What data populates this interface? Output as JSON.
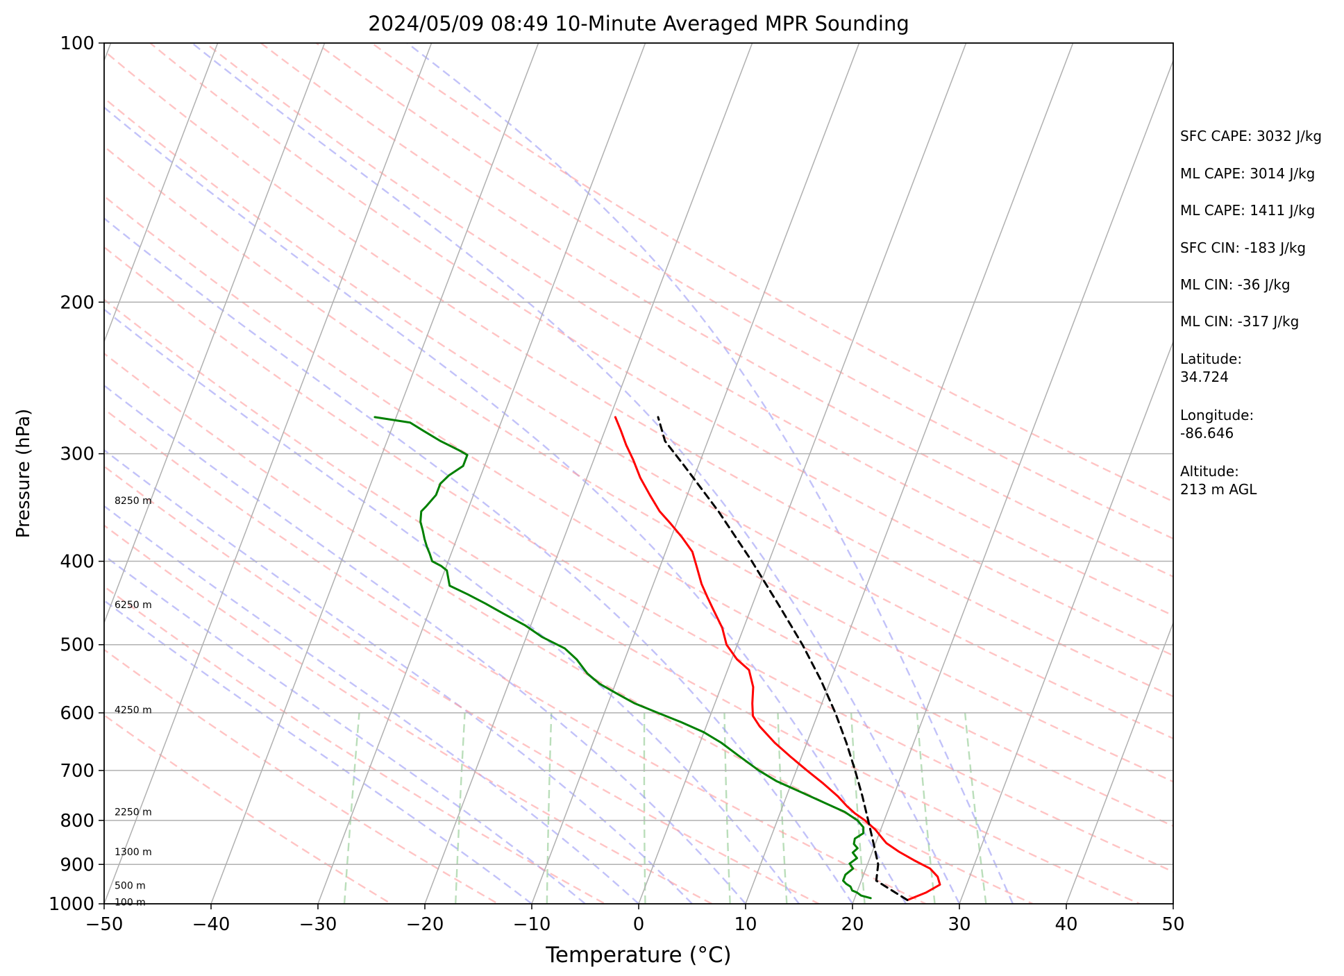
{
  "chart_data": {
    "type": "line",
    "title": "2024/05/09 08:49 10-Minute Averaged MPR Sounding",
    "xlabel": "Temperature (°C)",
    "ylabel": "Pressure (hPa)",
    "xlim": [
      -50,
      50
    ],
    "ylim": [
      1000,
      100
    ],
    "y_scale": "log",
    "skew_t": true,
    "grid": true,
    "x_ticks": [
      -50,
      -40,
      -30,
      -20,
      -10,
      0,
      10,
      20,
      30,
      40,
      50
    ],
    "x_tick_labels": [
      "−50",
      "−40",
      "−30",
      "−20",
      "−10",
      "0",
      "10",
      "20",
      "30",
      "40",
      "50"
    ],
    "y_ticks": [
      100,
      200,
      300,
      400,
      500,
      600,
      700,
      800,
      900,
      1000
    ],
    "y_tick_labels": [
      "100",
      "200",
      "300",
      "400",
      "500",
      "600",
      "700",
      "800",
      "900",
      "1000"
    ],
    "isotherms_C": [
      -110,
      -100,
      -90,
      -80,
      -70,
      -60,
      -50,
      -40,
      -30,
      -20,
      -10,
      0,
      10,
      20,
      30,
      40,
      50
    ],
    "dry_adiabats_K": [
      250,
      260,
      270,
      280,
      290,
      300,
      310,
      320,
      330,
      340,
      350,
      360,
      370,
      380,
      390,
      400,
      410,
      420
    ],
    "moist_adiabats_C": [
      -10,
      -5,
      0,
      5,
      10,
      15,
      20,
      25,
      30,
      35
    ],
    "mixing_ratio_lines_gkg": [
      0.4,
      1,
      2,
      4,
      7,
      10,
      16,
      24,
      32
    ],
    "height_labels": [
      {
        "text": "8250 m",
        "p": 340
      },
      {
        "text": "6250 m",
        "p": 449
      },
      {
        "text": "4250 m",
        "p": 595
      },
      {
        "text": "2250 m",
        "p": 782
      },
      {
        "text": "1300 m",
        "p": 870
      },
      {
        "text": "500 m",
        "p": 952
      },
      {
        "text": "100 m",
        "p": 995
      }
    ],
    "side_annotations": [
      "SFC CAPE: 3032 J/kg",
      "ML CAPE: 3014 J/kg",
      "ML CAPE: 1411 J/kg",
      "SFC CIN: -183 J/kg",
      "ML CIN: -36 J/kg",
      "ML CIN: -317 J/kg",
      "Latitude:",
      "34.724",
      "Longitude:",
      "-86.646",
      "Altitude:",
      "213 m AGL"
    ],
    "series": [
      {
        "color": "#ff0000",
        "points": [
          [
            25.0,
            990
          ],
          [
            26.5,
            970
          ],
          [
            27.5,
            950
          ],
          [
            27.0,
            930
          ],
          [
            26.0,
            910
          ],
          [
            24.2,
            890
          ],
          [
            22.5,
            870
          ],
          [
            21.0,
            850
          ],
          [
            20.5,
            840
          ],
          [
            19.5,
            820
          ],
          [
            18.2,
            800
          ],
          [
            17.0,
            785
          ],
          [
            16.0,
            770
          ],
          [
            14.8,
            750
          ],
          [
            13.0,
            725
          ],
          [
            11.0,
            700
          ],
          [
            9.0,
            675
          ],
          [
            7.0,
            650
          ],
          [
            5.0,
            622
          ],
          [
            4.0,
            605
          ],
          [
            3.5,
            585
          ],
          [
            3.0,
            560
          ],
          [
            2.0,
            535
          ],
          [
            0.5,
            520
          ],
          [
            -1.0,
            500
          ],
          [
            -2.0,
            478
          ],
          [
            -3.5,
            455
          ],
          [
            -4.5,
            440
          ],
          [
            -5.5,
            425
          ],
          [
            -6.5,
            407
          ],
          [
            -7.5,
            390
          ],
          [
            -9.0,
            375
          ],
          [
            -10.5,
            362
          ],
          [
            -12.0,
            350
          ],
          [
            -13.5,
            335
          ],
          [
            -15.0,
            320
          ],
          [
            -16.3,
            305
          ],
          [
            -17.5,
            293
          ],
          [
            -18.5,
            282
          ],
          [
            -19.5,
            272
          ]
        ]
      },
      {
        "color": "#008000",
        "points": [
          [
            21.5,
            985
          ],
          [
            20.5,
            978
          ],
          [
            20.0,
            970
          ],
          [
            19.5,
            965
          ],
          [
            19.2,
            955
          ],
          [
            18.7,
            948
          ],
          [
            18.3,
            940
          ],
          [
            18.3,
            925
          ],
          [
            18.8,
            910
          ],
          [
            18.3,
            898
          ],
          [
            18.8,
            885
          ],
          [
            18.2,
            872
          ],
          [
            18.5,
            862
          ],
          [
            18.0,
            852
          ],
          [
            17.9,
            840
          ],
          [
            18.5,
            828
          ],
          [
            18.3,
            815
          ],
          [
            17.5,
            800
          ],
          [
            16.0,
            782
          ],
          [
            14.0,
            765
          ],
          [
            11.0,
            740
          ],
          [
            8.5,
            720
          ],
          [
            6.5,
            700
          ],
          [
            4.0,
            672
          ],
          [
            2.0,
            650
          ],
          [
            0.0,
            632
          ],
          [
            -2.5,
            615
          ],
          [
            -5.0,
            600
          ],
          [
            -7.5,
            585
          ],
          [
            -9.5,
            570
          ],
          [
            -11.5,
            555
          ],
          [
            -13.0,
            540
          ],
          [
            -14.5,
            520
          ],
          [
            -16.0,
            505
          ],
          [
            -18.5,
            490
          ],
          [
            -20.5,
            475
          ],
          [
            -23.0,
            460
          ],
          [
            -25.0,
            448
          ],
          [
            -27.0,
            437
          ],
          [
            -29.0,
            427
          ],
          [
            -29.8,
            410
          ],
          [
            -30.5,
            405
          ],
          [
            -31.5,
            400
          ],
          [
            -32.0,
            392
          ],
          [
            -32.5,
            385
          ],
          [
            -33.0,
            377
          ],
          [
            -33.5,
            368
          ],
          [
            -34.0,
            360
          ],
          [
            -34.3,
            350
          ],
          [
            -34.0,
            345
          ],
          [
            -33.5,
            335
          ],
          [
            -33.5,
            325
          ],
          [
            -33.0,
            318
          ],
          [
            -32.0,
            310
          ],
          [
            -32.0,
            301
          ],
          [
            -33.0,
            297
          ],
          [
            -35.0,
            290
          ],
          [
            -37.0,
            282
          ],
          [
            -38.5,
            276
          ],
          [
            -42.0,
            272
          ]
        ]
      },
      {
        "color": "#000000",
        "dashed": true,
        "points": [
          [
            25.0,
            990
          ],
          [
            21.4,
            940
          ],
          [
            21.0,
            900
          ],
          [
            19.8,
            850
          ],
          [
            18.5,
            800
          ],
          [
            17.1,
            750
          ],
          [
            15.5,
            700
          ],
          [
            13.7,
            650
          ],
          [
            11.6,
            600
          ],
          [
            9.1,
            550
          ],
          [
            6.1,
            500
          ],
          [
            2.5,
            450
          ],
          [
            -1.6,
            400
          ],
          [
            -6.5,
            350
          ],
          [
            -11.3,
            310
          ],
          [
            -14.0,
            290
          ],
          [
            -15.5,
            272
          ]
        ]
      }
    ]
  }
}
